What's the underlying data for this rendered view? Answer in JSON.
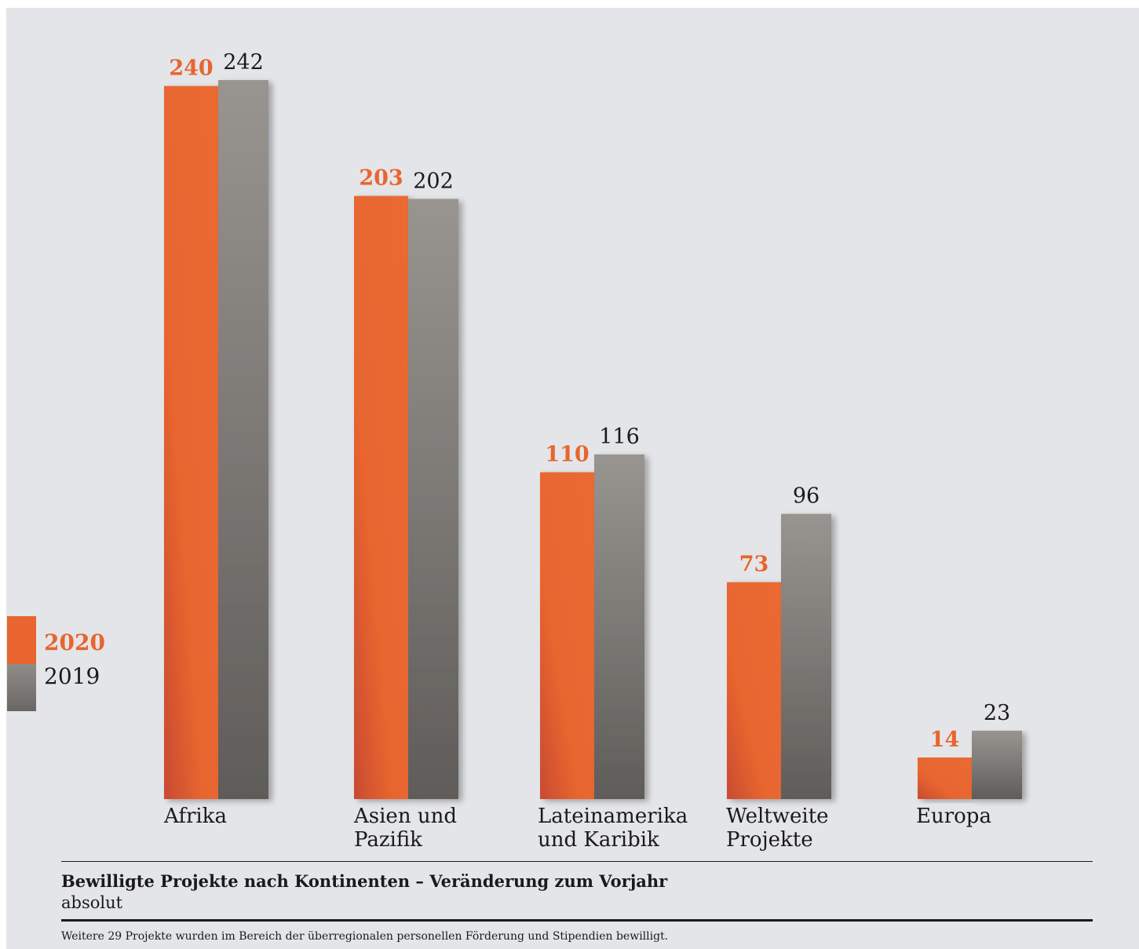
{
  "colors": {
    "series_2020": "#e8652f",
    "series_2019": "#858380",
    "background": "#e4e5e8"
  },
  "legend": {
    "series_2020": "2020",
    "series_2019": "2019"
  },
  "caption": {
    "title": "Bewilligte Projekte nach Kontinenten – Veränderung zum Vorjahr",
    "subtitle": "absolut",
    "footnote": "Weitere 29 Projekte wurden im Bereich der überregionalen personellen Förderung und Stipendien bewilligt."
  },
  "chart_data": {
    "type": "bar",
    "title": "Bewilligte Projekte nach Kontinenten – Veränderung zum Vorjahr",
    "subtitle": "absolut",
    "categories": [
      "Afrika",
      "Asien und\nPazifik",
      "Lateinamerika\nund Karibik",
      "Weltweite\nProjekte",
      "Europa"
    ],
    "series": [
      {
        "name": "2020",
        "values": [
          240,
          203,
          110,
          73,
          14
        ]
      },
      {
        "name": "2019",
        "values": [
          242,
          202,
          116,
          96,
          23
        ]
      }
    ],
    "ylim": [
      0,
      242
    ],
    "grid": false,
    "legend_position": "left"
  }
}
